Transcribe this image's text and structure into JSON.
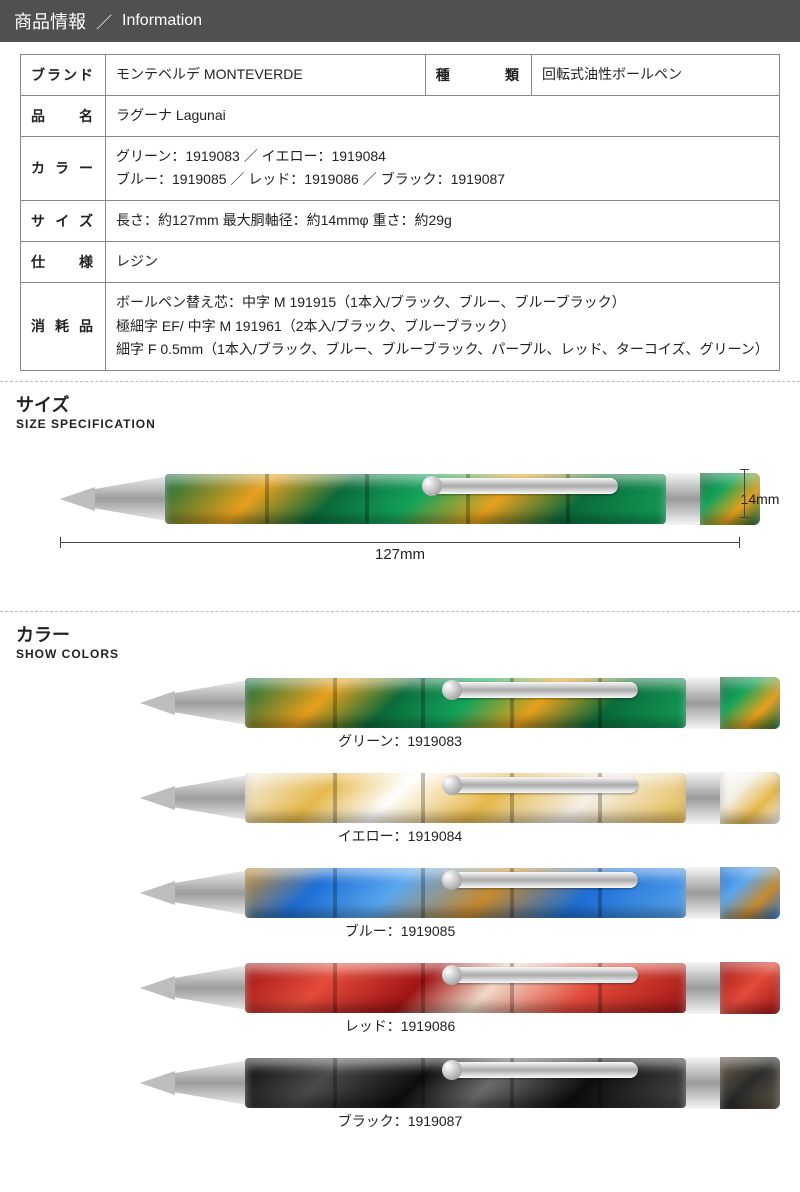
{
  "header": {
    "title_jp": "商品情報",
    "title_en": "Information"
  },
  "table": {
    "brand_h": "ブランド",
    "brand_v": "モンテベルデ MONTEVERDE",
    "type_h": "種　類",
    "type_v": "回転式油性ボールペン",
    "name_h": "品　名",
    "name_v": "ラグーナ Lagunai",
    "color_h": "カラー",
    "color_v1": "グリーン：1919083 ／ イエロー：1919084",
    "color_v2": "ブルー：1919085 ／ レッド：1919086 ／ ブラック：1919087",
    "size_h": "サイズ",
    "size_v": "長さ：約127mm 最大胴軸径：約14mmφ 重さ：約29g",
    "spec_h": "仕　様",
    "spec_v": "レジン",
    "refill_h": "消耗品",
    "refill_v1": "ボールペン替え芯：中字 M 191915（1本入/ブラック、ブルー、ブルーブラック）",
    "refill_v2": "極細字 EF/ 中字 M 191961（2本入/ブラック、ブルーブラック）",
    "refill_v3": "細字 F 0.5mm（1本入/ブラック、ブルー、ブルーブラック、パープル、レッド、ターコイズ、グリーン）"
  },
  "size_section": {
    "title_jp": "サイズ",
    "title_en": "SIZE SPECIFICATION",
    "length_label": "127mm",
    "dia_label": "14mm",
    "pen_body_gradient": "linear-gradient(135deg,#0b6b3a 0%,#e8a01d 20%,#0b6b3a 35%,#13a35a 50%,#e8a01d 65%,#0b6b3a 80%,#13a35a 100%)",
    "pen_cap_gradient": "linear-gradient(135deg,#0b6b3a,#13a35a,#e8a01d,#0b6b3a)"
  },
  "color_section": {
    "title_jp": "カラー",
    "title_en": "SHOW COLORS",
    "items": [
      {
        "label": "グリーン：1919083",
        "body": "linear-gradient(135deg,#0b6b3a 0%,#e8a01d 20%,#0b6b3a 35%,#13a35a 50%,#e8a01d 65%,#0b6b3a 80%,#13a35a 100%)",
        "cap": "linear-gradient(135deg,#0b6b3a,#13a35a,#e8a01d,#0b6b3a)"
      },
      {
        "label": "イエロー：1919084",
        "body": "linear-gradient(135deg,#f4f0e6 0%,#e6b84a 20%,#fff 35%,#e6b84a 55%,#f4f0e6 75%,#e6b84a 100%)",
        "cap": "linear-gradient(135deg,#fff,#f4f0e6,#e6b84a,#fff)"
      },
      {
        "label": "ブルー：1919085",
        "body": "linear-gradient(135deg,#c78a2e 0%,#1d6fd6 18%,#5aa6ee 35%,#c78a2e 55%,#1d6fd6 75%,#5aa6ee 100%)",
        "cap": "linear-gradient(135deg,#1d6fd6,#5aa6ee,#c78a2e,#1d6fd6)"
      },
      {
        "label": "レッド：1919086",
        "body": "linear-gradient(135deg,#a01414 0%,#e34b3a 20%,#a01414 40%,#f0d9c8 55%,#e34b3a 75%,#a01414 100%)",
        "cap": "linear-gradient(135deg,#a01414,#e34b3a,#a01414)"
      },
      {
        "label": "ブラック：1919087",
        "body": "linear-gradient(135deg,#0d0d0d 0%,#4a4a4a 20%,#0d0d0d 40%,#6b6b6b 55%,#0d0d0d 75%,#4a4a4a 100%)",
        "cap": "linear-gradient(135deg,#6b604a,#2a2a2a,#6b604a)"
      }
    ]
  }
}
